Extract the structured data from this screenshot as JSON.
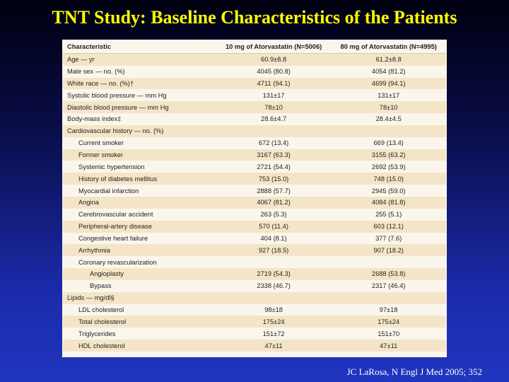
{
  "title": "TNT Study: Baseline Characteristics of the Patients",
  "citation": "JC LaRosa, N Engl J Med 2005; 352",
  "table": {
    "headers": [
      "Characteristic",
      "10 mg of Atorvastatin (N=5006)",
      "80 mg of Atorvastatin (N=4995)"
    ],
    "rows": [
      {
        "label": "Age — yr",
        "a": "60.9±8.8",
        "b": "61.2±8.8"
      },
      {
        "label": "Male sex — no. (%)",
        "a": "4045 (80.8)",
        "b": "4054 (81.2)"
      },
      {
        "label": "White race — no. (%)†",
        "a": "4711 (94.1)",
        "b": "4699 (94.1)"
      },
      {
        "label": "Systolic blood pressure — mm Hg",
        "a": "131±17",
        "b": "131±17"
      },
      {
        "label": "Diastolic blood pressure — mm Hg",
        "a": "78±10",
        "b": "78±10"
      },
      {
        "label": "Body-mass index‡",
        "a": "28.6±4.7",
        "b": "28.4±4.5"
      },
      {
        "label": "Cardiovascular history — no. (%)",
        "a": "",
        "b": ""
      },
      {
        "label": "Current smoker",
        "a": "672 (13.4)",
        "b": "669 (13.4)"
      },
      {
        "label": "Former smoker",
        "a": "3167 (63.3)",
        "b": "3155 (63.2)"
      },
      {
        "label": "Systemic hypertension",
        "a": "2721 (54.4)",
        "b": "2692 (53.9)"
      },
      {
        "label": "History of diabetes mellitus",
        "a": "753 (15.0)",
        "b": "748 (15.0)"
      },
      {
        "label": "Myocardial infarction",
        "a": "2888 (57.7)",
        "b": "2945 (59.0)"
      },
      {
        "label": "Angina",
        "a": "4067 (81.2)",
        "b": "4084 (81.8)"
      },
      {
        "label": "Cerebrovascular accident",
        "a": "263 (5.3)",
        "b": "255 (5.1)"
      },
      {
        "label": "Peripheral-artery disease",
        "a": "570 (11.4)",
        "b": "603 (12.1)"
      },
      {
        "label": "Congestive heart failure",
        "a": "404 (8.1)",
        "b": "377 (7.6)"
      },
      {
        "label": "Arrhythmia",
        "a": "927 (18.5)",
        "b": "907 (18.2)"
      },
      {
        "label": "Coronary revascularization",
        "a": "",
        "b": ""
      },
      {
        "label": "Angioplasty",
        "a": "2719 (54.3)",
        "b": "2688 (53.8)"
      },
      {
        "label": "Bypass",
        "a": "2338 (46.7)",
        "b": "2317 (46.4)"
      },
      {
        "label": "Lipids — mg/dl§",
        "a": "",
        "b": ""
      },
      {
        "label": "LDL cholesterol",
        "a": "98±18",
        "b": "97±18"
      },
      {
        "label": "Total cholesterol",
        "a": "175±24",
        "b": "175±24"
      },
      {
        "label": "Triglycerides",
        "a": "151±72",
        "b": "151±70"
      },
      {
        "label": "HDL cholesterol",
        "a": "47±11",
        "b": "47±11"
      }
    ]
  }
}
